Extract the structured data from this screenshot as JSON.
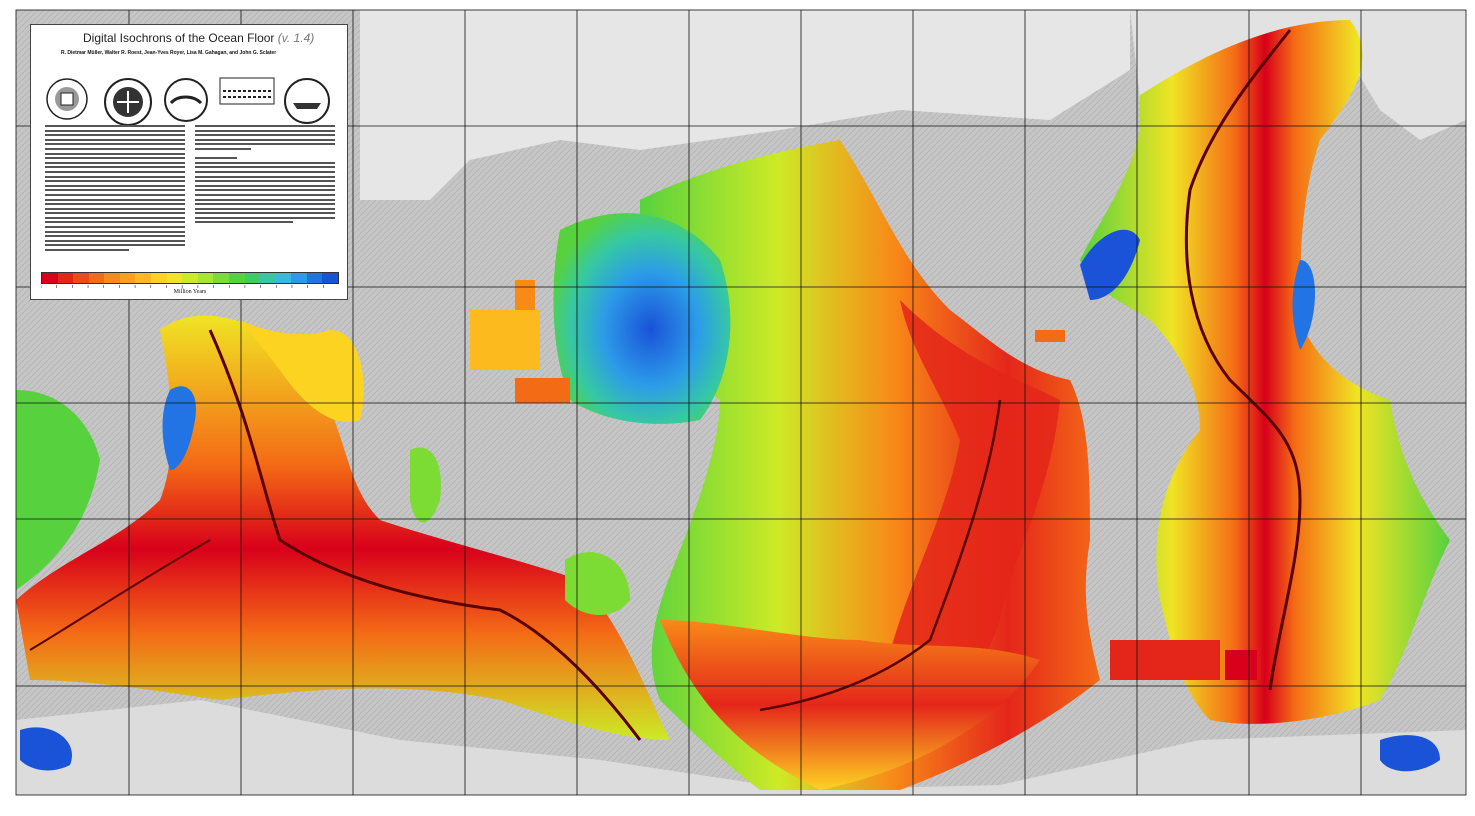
{
  "legend": {
    "title": "Digital Isochrons of the Ocean Floor",
    "version": "(v. 1.4)",
    "authors": "R. Dietmar Müller, Walter R. Roest, Jean-Yves Royer, Lisa M. Gahagan, and John G. Sclater",
    "unit_label": "Million Years",
    "colorbar": [
      "#d8001a",
      "#e4261a",
      "#ee4a18",
      "#f46b16",
      "#f88a18",
      "#fba01a",
      "#fdba1e",
      "#fdd322",
      "#f0e424",
      "#cdea26",
      "#a6e82c",
      "#7ddc34",
      "#57d23e",
      "#3fcc66",
      "#36c8a4",
      "#34bcd8",
      "#2c9ce8",
      "#2274e4",
      "#1a52d8"
    ]
  },
  "palette": {
    "land": "#c8c8c8",
    "background": "#ffffff",
    "grid": "#111111",
    "ridge": "#5a0000",
    "ocean_ages": {
      "youngest": "#d8001a",
      "young": "#f46b16",
      "middle": "#fdd322",
      "older": "#7ddc34",
      "old": "#36c8a4",
      "oldest": "#1a52d8"
    }
  }
}
